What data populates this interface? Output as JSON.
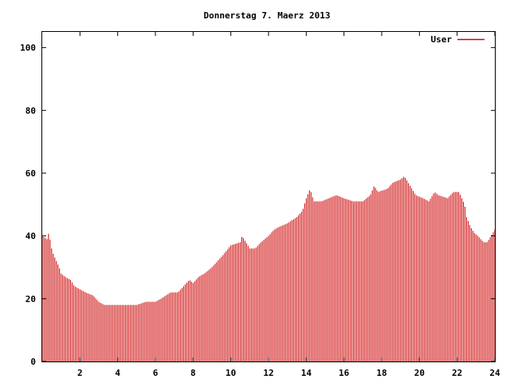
{
  "chart_data": {
    "type": "bar",
    "title": "Donnerstag 7. Maerz 2013",
    "xlabel": "",
    "ylabel": "",
    "xlim": [
      0,
      24
    ],
    "ylim": [
      0,
      105
    ],
    "xticks": [
      2,
      4,
      6,
      8,
      10,
      12,
      14,
      16,
      18,
      20,
      22,
      24
    ],
    "xtick_labels": [
      "2",
      "4",
      "6",
      "8",
      "10",
      "12",
      "14",
      "16",
      "18",
      "20",
      "22",
      "24"
    ],
    "yticks": [
      0,
      20,
      40,
      60,
      80,
      100
    ],
    "ytick_labels": [
      "0",
      "20",
      "40",
      "60",
      "80",
      "100"
    ],
    "grid": false,
    "legend_position": "top-right",
    "series": [
      {
        "name": "User",
        "color": "#cc0000",
        "keypoints": [
          [
            0.0,
            40
          ],
          [
            0.25,
            39
          ],
          [
            0.35,
            41
          ],
          [
            0.5,
            36
          ],
          [
            0.6,
            34
          ],
          [
            0.75,
            32
          ],
          [
            0.9,
            30
          ],
          [
            1.0,
            28
          ],
          [
            1.2,
            27
          ],
          [
            1.5,
            26
          ],
          [
            1.7,
            24
          ],
          [
            2.0,
            23
          ],
          [
            2.3,
            22
          ],
          [
            2.7,
            21
          ],
          [
            3.0,
            19
          ],
          [
            3.3,
            18
          ],
          [
            4.0,
            18
          ],
          [
            5.0,
            18
          ],
          [
            5.5,
            19
          ],
          [
            6.0,
            19
          ],
          [
            6.3,
            20
          ],
          [
            6.8,
            22
          ],
          [
            7.2,
            22
          ],
          [
            7.5,
            24
          ],
          [
            7.8,
            26
          ],
          [
            8.0,
            25
          ],
          [
            8.3,
            27
          ],
          [
            8.6,
            28
          ],
          [
            9.0,
            30
          ],
          [
            9.3,
            32
          ],
          [
            9.6,
            34
          ],
          [
            10.0,
            37
          ],
          [
            10.5,
            38
          ],
          [
            10.6,
            40
          ],
          [
            10.8,
            38
          ],
          [
            11.0,
            36
          ],
          [
            11.3,
            36
          ],
          [
            11.6,
            38
          ],
          [
            12.0,
            40
          ],
          [
            12.3,
            42
          ],
          [
            12.6,
            43
          ],
          [
            13.0,
            44
          ],
          [
            13.5,
            46
          ],
          [
            13.8,
            48
          ],
          [
            14.0,
            52
          ],
          [
            14.2,
            55
          ],
          [
            14.4,
            51
          ],
          [
            14.8,
            51
          ],
          [
            15.2,
            52
          ],
          [
            15.6,
            53
          ],
          [
            16.0,
            52
          ],
          [
            16.5,
            51
          ],
          [
            17.0,
            51
          ],
          [
            17.4,
            53
          ],
          [
            17.6,
            56
          ],
          [
            17.8,
            54
          ],
          [
            18.3,
            55
          ],
          [
            18.6,
            57
          ],
          [
            19.0,
            58
          ],
          [
            19.2,
            59
          ],
          [
            19.5,
            56
          ],
          [
            19.8,
            53
          ],
          [
            20.2,
            52
          ],
          [
            20.5,
            51
          ],
          [
            20.8,
            54
          ],
          [
            21.0,
            53
          ],
          [
            21.5,
            52
          ],
          [
            21.8,
            54
          ],
          [
            22.1,
            54
          ],
          [
            22.4,
            50
          ],
          [
            22.5,
            46
          ],
          [
            22.7,
            43
          ],
          [
            22.9,
            41
          ],
          [
            23.1,
            40
          ],
          [
            23.4,
            38
          ],
          [
            23.6,
            38
          ],
          [
            24.0,
            42
          ]
        ]
      }
    ]
  }
}
